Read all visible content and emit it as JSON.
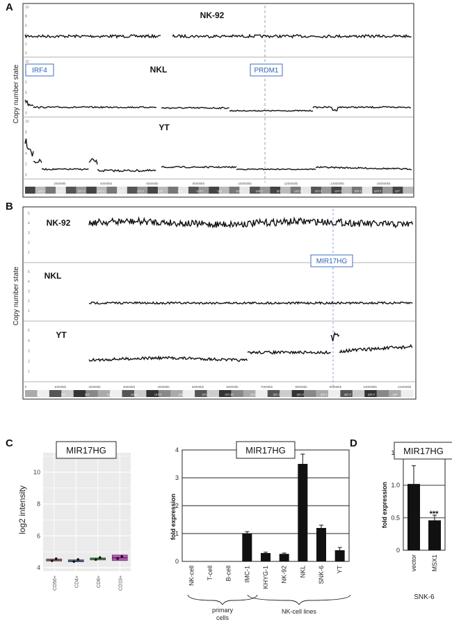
{
  "panels": {
    "a": {
      "letter": "A",
      "ylabel": "Copy number state",
      "tracks": [
        {
          "name": "NK-92",
          "yticks": [
            "10",
            "8",
            "6",
            "4",
            "2",
            "0"
          ]
        },
        {
          "name": "NKL",
          "yticks": [
            "10",
            "8",
            "6",
            "4",
            "2",
            "0"
          ]
        },
        {
          "name": "YT",
          "yticks": [
            "10",
            "8",
            "6",
            "4",
            "2",
            "0"
          ]
        }
      ],
      "markers": [
        "IRF4",
        "PRDM1"
      ],
      "xticks": [
        "20000kb",
        "40000kb",
        "60000kb",
        "80000kb",
        "100000kb",
        "120000kb",
        "140000kb",
        "160000kb"
      ],
      "bands": [
        "p25.1",
        "p23.3",
        "p22.3",
        "p21.1",
        "p12.3",
        "p12.1",
        "q12",
        "q13",
        "q14.2",
        "q15",
        "q16.1",
        "q16.3",
        "q21",
        "q22.31",
        "q23.3",
        "q24.2",
        "q25.1",
        "q25.3",
        "q27"
      ]
    },
    "b": {
      "letter": "B",
      "ylabel": "Copy number state",
      "tracks": [
        {
          "name": "NK-92",
          "yticks": [
            "5",
            "4",
            "3",
            "2",
            "1"
          ]
        },
        {
          "name": "NKL",
          "yticks": [
            "5",
            "4",
            "3",
            "2",
            "1"
          ]
        },
        {
          "name": "YT",
          "yticks": [
            "5",
            "4",
            "3",
            "2",
            "1"
          ]
        }
      ],
      "markers": [
        "MIR17HG"
      ],
      "xticks": [
        "0",
        "10000kb",
        "20000kb",
        "30000kb",
        "40000kb",
        "50000kb",
        "60000kb",
        "70000kb",
        "80000kb",
        "90000kb",
        "100000kb",
        "110000kb"
      ],
      "bands": [
        "q11",
        "q12",
        "q13",
        "q14.1",
        "q14.2",
        "q14.3",
        "q21.1",
        "q21.2",
        "q21.33",
        "q22",
        "q31.1",
        "q31.3",
        "q32.1",
        "q32.3",
        "q33.3",
        "q34"
      ]
    }
  },
  "panel_c": {
    "letter": "C"
  },
  "panel_d": {
    "letter": "D"
  },
  "chart_data": [
    {
      "type": "box",
      "title": "MIR17HG",
      "ylabel": "log2 intensity",
      "ylim": [
        4,
        11
      ],
      "yticks": [
        "4",
        "6",
        "8",
        "10"
      ],
      "categories": [
        "CD56+",
        "CD4+",
        "CD8+",
        "CD19+"
      ],
      "values": [
        4.48,
        4.43,
        4.55,
        4.62
      ],
      "colors": [
        "#e07a7a",
        "#6f8fd0",
        "#5fb85f",
        "#c050c0"
      ]
    },
    {
      "type": "bar",
      "title": "MIR17HG",
      "ylabel": "fold expression",
      "ylim": [
        0,
        4
      ],
      "yticks": [
        "0",
        "1",
        "2",
        "3",
        "4"
      ],
      "categories": [
        "NK-cell",
        "T-cell",
        "B-cell",
        "IMC-1",
        "KHYG-1",
        "NK-92",
        "NKL",
        "SNK-6",
        "YT"
      ],
      "values": [
        0,
        0,
        0,
        1.0,
        0.3,
        0.27,
        3.5,
        1.2,
        0.4
      ],
      "errors": [
        0,
        0,
        0,
        0.07,
        0.03,
        0.03,
        0.35,
        0.1,
        0.1
      ],
      "groups": [
        {
          "label_line1": "primary",
          "label_line2": "cells"
        },
        {
          "label_line1": "NK-cell lines",
          "label_line2": ""
        }
      ]
    },
    {
      "type": "bar",
      "title": "MIR17HG",
      "ylabel": "fold expression",
      "ylim": [
        0,
        1.5
      ],
      "yticks": [
        "0",
        "0.5",
        "1.0",
        "1.5"
      ],
      "categories": [
        "vector",
        "MSX1"
      ],
      "values": [
        1.02,
        0.46
      ],
      "errors": [
        0.28,
        0.08
      ],
      "annotation": "***",
      "xlabel": "SNK-6"
    }
  ]
}
